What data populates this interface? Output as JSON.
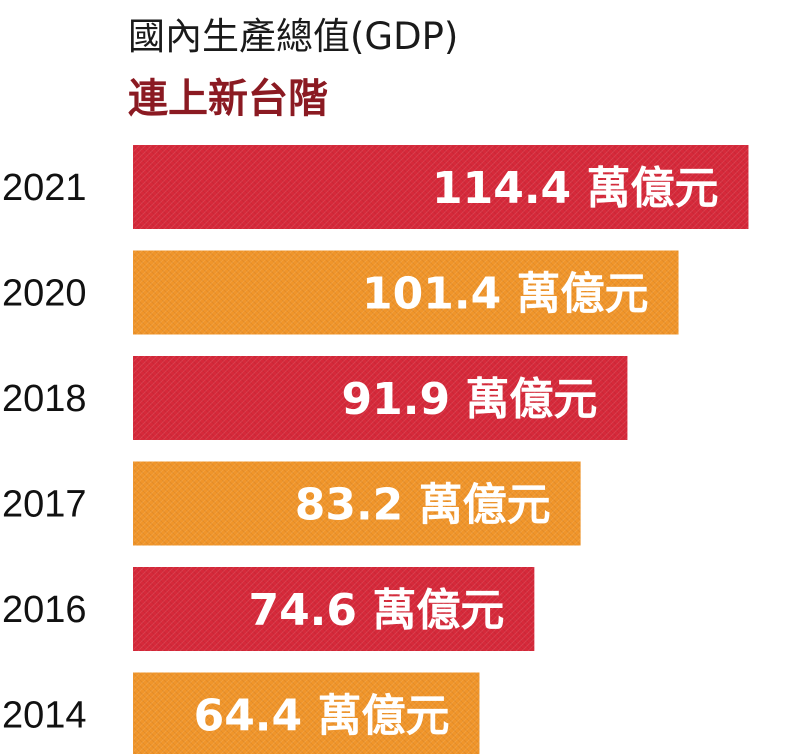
{
  "chart_data": {
    "type": "bar",
    "orientation": "horizontal",
    "title": "國內生產總值(GDP)",
    "subtitle": "連上新台階",
    "categories": [
      "2021",
      "2020",
      "2018",
      "2017",
      "2016",
      "2014"
    ],
    "values": [
      114.4,
      101.4,
      91.9,
      83.2,
      74.6,
      64.4
    ],
    "data_labels": [
      "114.4 萬億元",
      "101.4 萬億元",
      "91.9 萬億元",
      "83.2 萬億元",
      "74.6 萬億元",
      "64.4 萬億元"
    ],
    "unit": "萬億元",
    "bar_colors": [
      "#d6293a",
      "#f0952a",
      "#d6293a",
      "#f0952a",
      "#d6293a",
      "#f0952a"
    ],
    "xlim": [
      0,
      120
    ],
    "grid": false,
    "legend": "none"
  },
  "colors": {
    "title_text": "#1a1a1a",
    "subtitle_text": "#8b1a22",
    "label_text": "#ffffff",
    "category_text": "#111111"
  }
}
